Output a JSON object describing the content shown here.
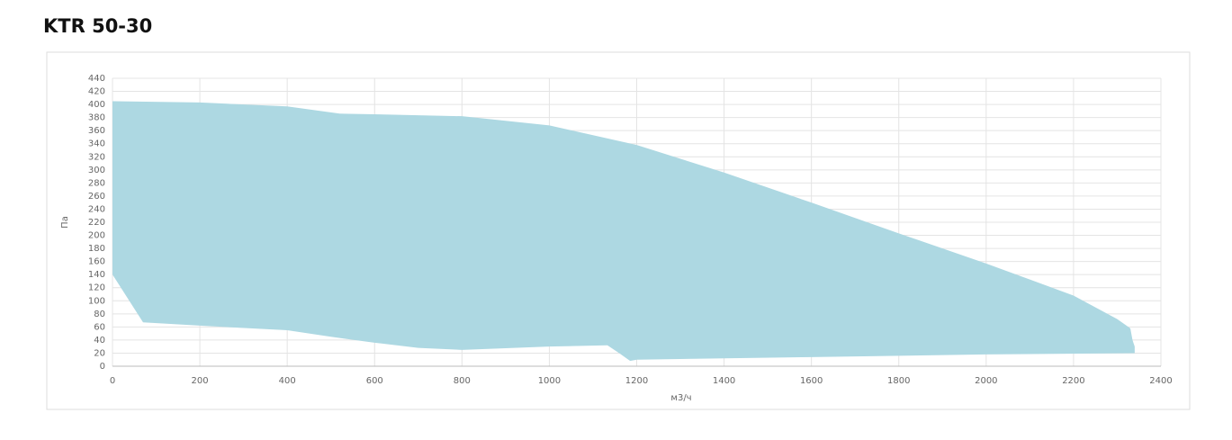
{
  "chart_data": {
    "type": "area",
    "title": "KTR 50-30",
    "x_label": "м3/ч",
    "y_label": "Па",
    "series": [
      {
        "color": "#add8e2",
        "x": [
          0,
          200,
          400,
          520,
          600,
          800,
          1000,
          1200,
          1400,
          1600,
          1800,
          2000,
          2200,
          2300,
          2330,
          2335,
          2340,
          2340,
          2000,
          1600,
          1200,
          1185,
          1160,
          1133,
          1000,
          800,
          700,
          600,
          500,
          400,
          200,
          70,
          0
        ],
        "values": [
          405,
          403,
          397,
          386,
          385,
          382,
          368,
          338,
          296,
          250,
          203,
          157,
          108,
          72,
          58,
          40,
          30,
          20,
          18,
          14,
          10,
          8,
          20,
          32,
          30,
          25,
          28,
          36,
          45,
          55,
          62,
          67,
          140
        ]
      }
    ],
    "xlim": [
      0,
      2400
    ],
    "xticks": [
      0,
      200,
      400,
      600,
      800,
      1000,
      1200,
      1400,
      1600,
      1800,
      2000,
      2200,
      2400
    ],
    "ylim": [
      0,
      440
    ],
    "yticks": [
      0,
      20,
      40,
      60,
      80,
      100,
      120,
      140,
      160,
      180,
      200,
      220,
      240,
      260,
      280,
      300,
      320,
      340,
      360,
      380,
      400,
      420,
      440
    ],
    "grid": true
  }
}
